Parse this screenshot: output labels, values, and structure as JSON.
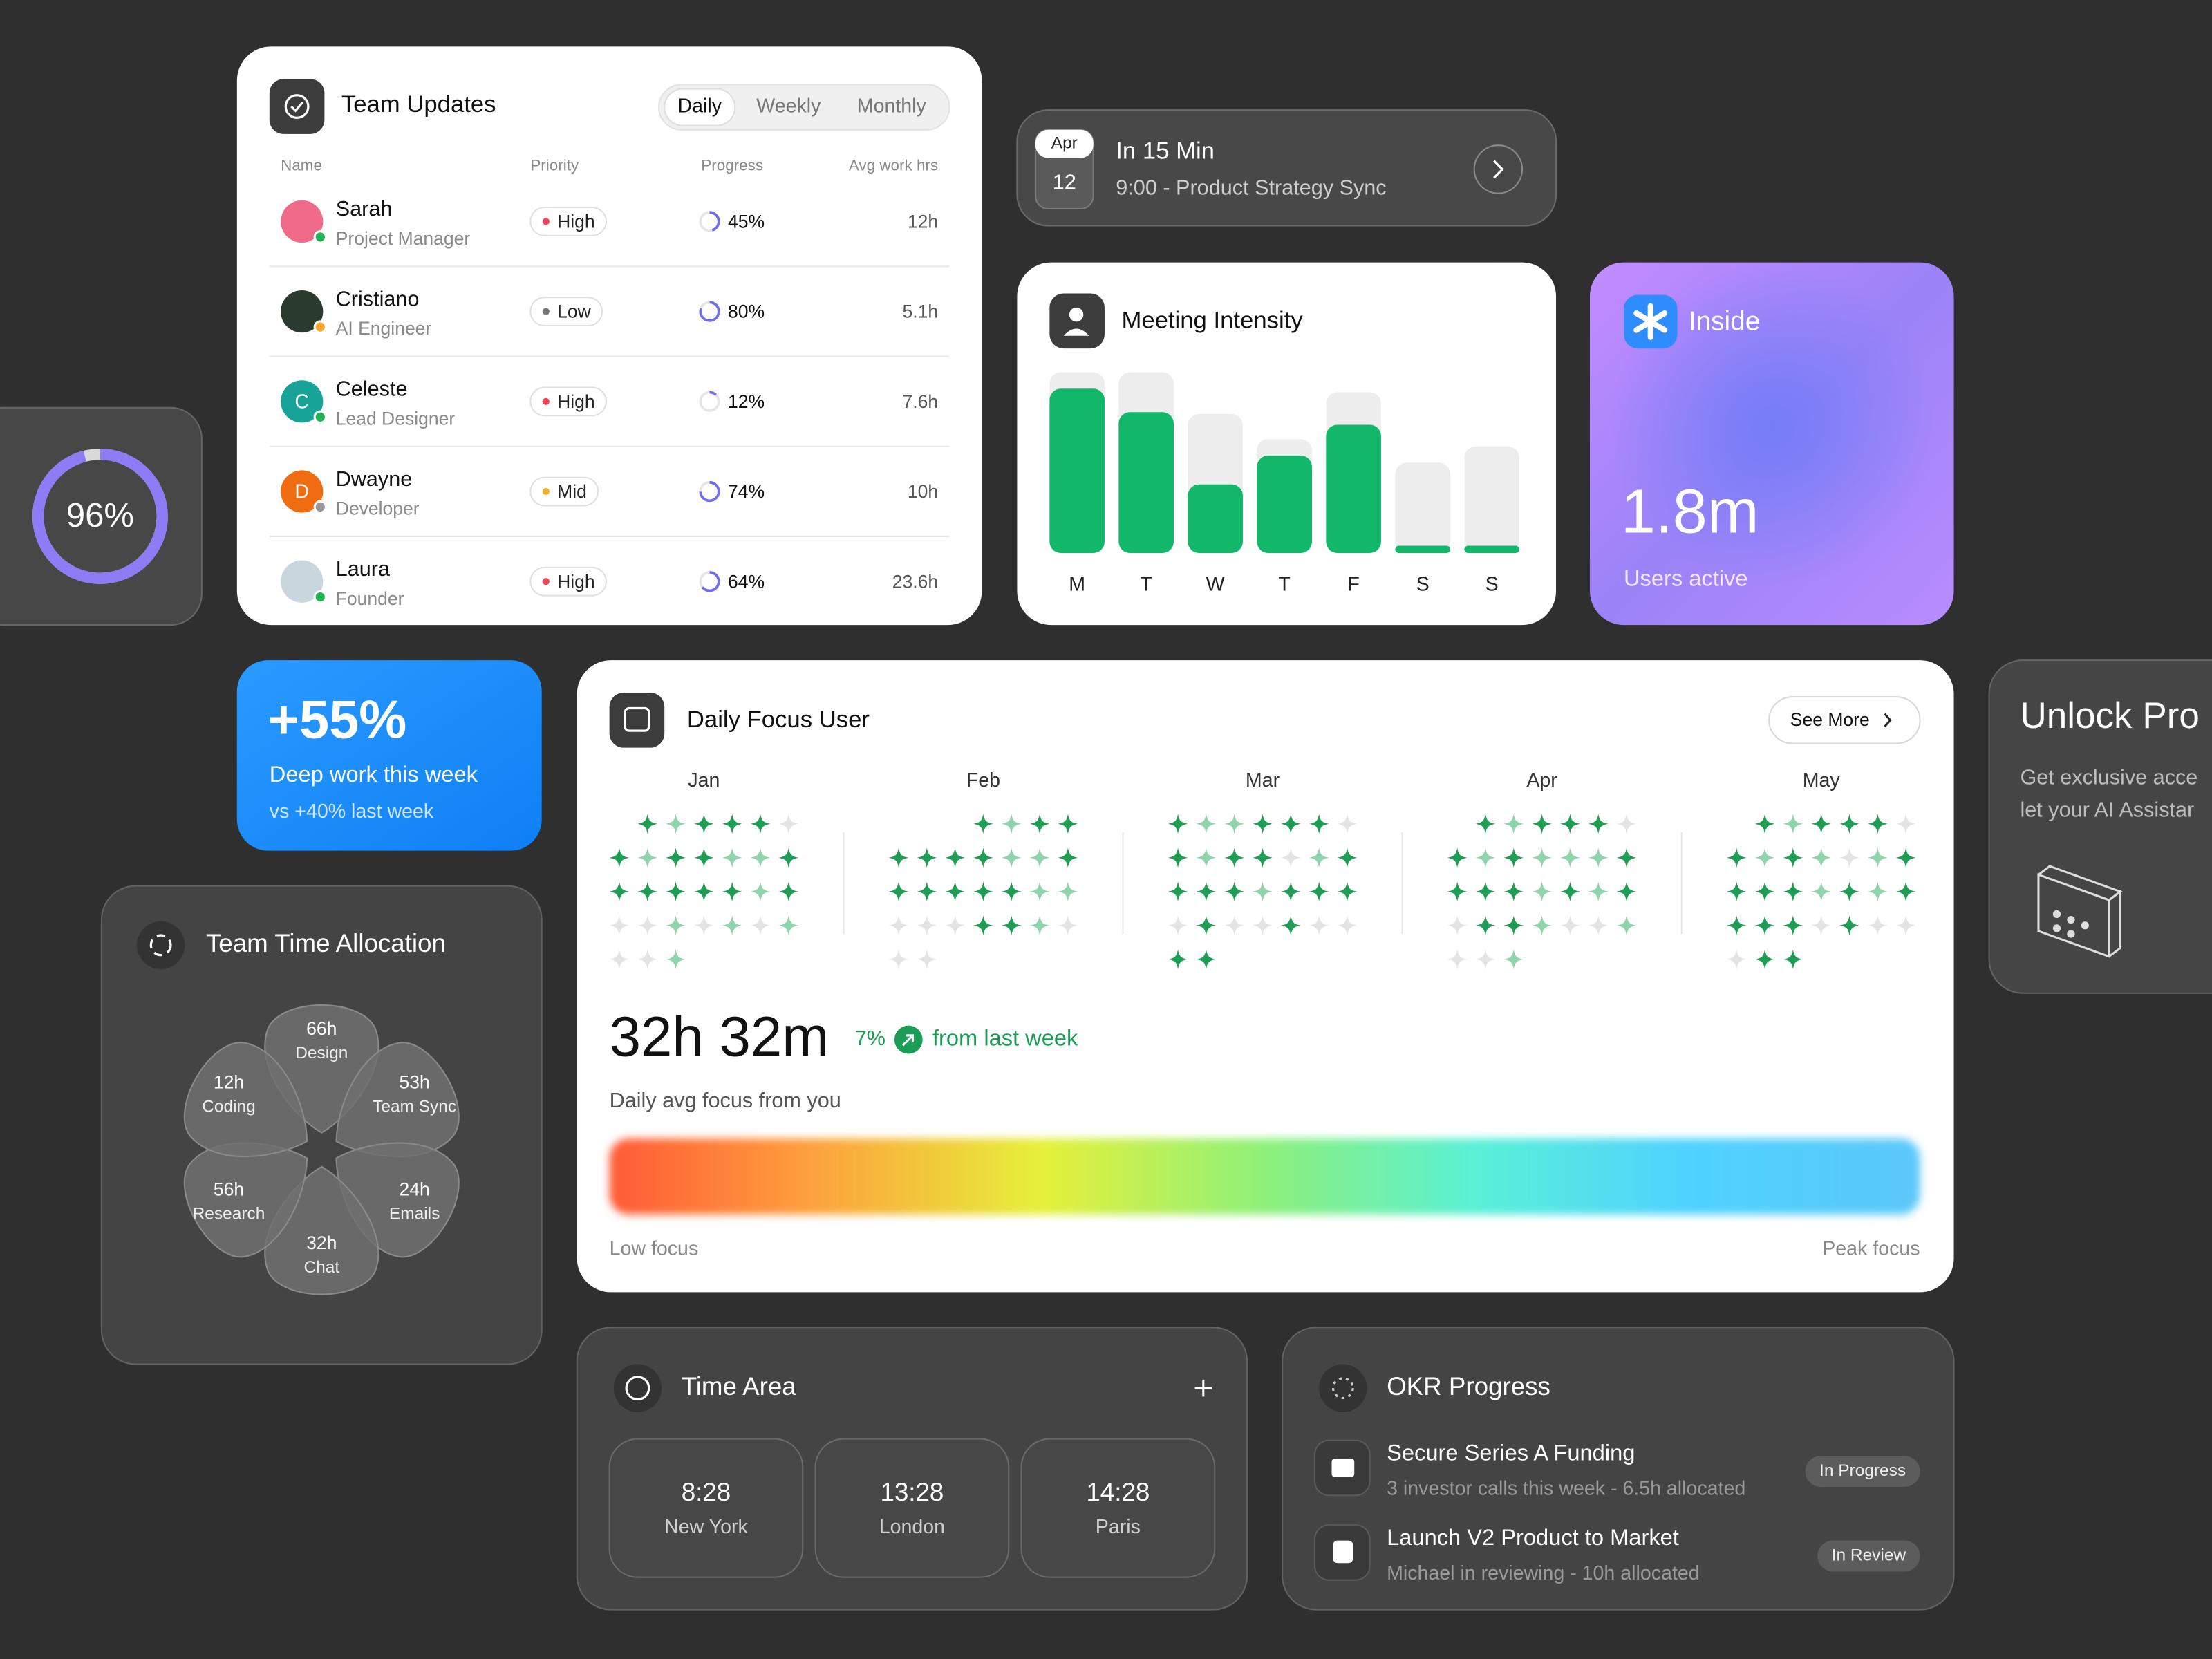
{
  "team_updates": {
    "title": "Team Updates",
    "tabs": [
      "Daily",
      "Weekly",
      "Monthly"
    ],
    "columns": [
      "Name",
      "Priority",
      "Progress",
      "Avg work hrs"
    ],
    "rows": [
      {
        "name": "Sarah",
        "role": "Project Manager",
        "priority": "High",
        "progress": {
          "value": 45,
          "label": "45%"
        },
        "hours": "12h"
      },
      {
        "name": "Cristiano",
        "role": "AI Engineer",
        "priority": "Low",
        "progress": {
          "value": 80,
          "label": "80%"
        },
        "hours": "5.1h"
      },
      {
        "name": "Celeste",
        "initial": "C",
        "role": "Lead Designer",
        "priority": "High",
        "progress": {
          "value": 12,
          "label": "12%"
        },
        "hours": "7.6h"
      },
      {
        "name": "Dwayne",
        "initial": "D",
        "role": "Developer",
        "priority": "Mid",
        "progress": {
          "value": 74,
          "label": "74%"
        },
        "hours": "10h"
      },
      {
        "name": "Laura",
        "role": "Founder",
        "priority": "High",
        "progress": {
          "value": 64,
          "label": "64%"
        },
        "hours": "23.6h"
      }
    ]
  },
  "event": {
    "month": "Apr",
    "day": "12",
    "title": "In 15 Min",
    "subtitle": "9:00 - Product Strategy Sync"
  },
  "meeting_intensity": {
    "title": "Meeting Intensity",
    "days": [
      "M",
      "T",
      "W",
      "T",
      "F",
      "S",
      "S"
    ],
    "values": [
      91,
      78,
      38,
      54,
      71,
      4,
      4
    ],
    "capacity": [
      100,
      100,
      77,
      63,
      89,
      50,
      59
    ],
    "ylim": [
      0,
      100
    ],
    "color": "#12b76a"
  },
  "inside": {
    "brand": "Inside",
    "value": "1.8m",
    "label": "Users active"
  },
  "score": {
    "value": 96,
    "label": "96%"
  },
  "deep_work": {
    "value": "+55%",
    "label": "Deep work this week",
    "comparison": "vs +40% last week"
  },
  "time_allocation": {
    "title": "Team Time Allocation",
    "segments": [
      {
        "hours": "66h",
        "name": "Design"
      },
      {
        "hours": "53h",
        "name": "Team Sync"
      },
      {
        "hours": "24h",
        "name": "Emails"
      },
      {
        "hours": "32h",
        "name": "Chat"
      },
      {
        "hours": "56h",
        "name": "Research"
      },
      {
        "hours": "12h",
        "name": "Coding"
      }
    ]
  },
  "daily_focus": {
    "title": "Daily Focus User",
    "button": "See More",
    "level_colors": [
      "#e4e4e4",
      "#8fd4ab",
      "#1f9d55"
    ],
    "months": [
      {
        "name": "Jan",
        "levels": [
          null,
          2,
          1,
          2,
          2,
          2,
          0,
          2,
          1,
          2,
          2,
          1,
          1,
          2,
          2,
          2,
          2,
          2,
          2,
          1,
          2,
          0,
          0,
          1,
          0,
          1,
          0,
          1,
          0,
          0,
          1
        ]
      },
      {
        "name": "Feb",
        "levels": [
          null,
          null,
          null,
          2,
          1,
          2,
          2,
          2,
          2,
          2,
          2,
          1,
          1,
          2,
          2,
          2,
          2,
          2,
          2,
          1,
          1,
          0,
          0,
          0,
          2,
          2,
          1,
          0,
          0,
          0
        ]
      },
      {
        "name": "Mar",
        "levels": [
          2,
          1,
          1,
          2,
          2,
          2,
          0,
          2,
          1,
          2,
          2,
          0,
          1,
          2,
          2,
          2,
          2,
          1,
          2,
          2,
          2,
          0,
          2,
          0,
          0,
          2,
          0,
          0,
          2,
          2
        ]
      },
      {
        "name": "Apr",
        "levels": [
          null,
          2,
          1,
          2,
          2,
          2,
          0,
          2,
          1,
          2,
          1,
          1,
          1,
          2,
          2,
          2,
          2,
          1,
          2,
          1,
          2,
          0,
          2,
          2,
          1,
          0,
          0,
          1,
          0,
          0,
          1
        ]
      },
      {
        "name": "May",
        "levels": [
          null,
          2,
          1,
          2,
          2,
          2,
          0,
          2,
          1,
          2,
          1,
          0,
          1,
          2,
          2,
          2,
          2,
          1,
          2,
          1,
          2,
          2,
          2,
          2,
          0,
          2,
          0,
          0,
          0,
          2,
          2
        ]
      }
    ],
    "total": "32h 32m",
    "change": "7%",
    "change_text": "from last week",
    "caption": "Daily avg focus from you",
    "low": "Low focus",
    "high": "Peak focus"
  },
  "unlock": {
    "title": "Unlock Pro",
    "lines": [
      "Get exclusive acce",
      "let your AI Assistar"
    ]
  },
  "time_area": {
    "title": "Time Area",
    "clocks": [
      {
        "time": "8:28",
        "city": "New York"
      },
      {
        "time": "13:28",
        "city": "London"
      },
      {
        "time": "14:28",
        "city": "Paris"
      }
    ]
  },
  "okr": {
    "title": "OKR Progress",
    "items": [
      {
        "title": "Secure Series A Funding",
        "detail": "3 investor calls this week - 6.5h allocated",
        "status": "In Progress"
      },
      {
        "title": "Launch V2 Product to Market",
        "detail": "Michael in reviewing - 10h allocated",
        "status": "In Review"
      }
    ]
  }
}
